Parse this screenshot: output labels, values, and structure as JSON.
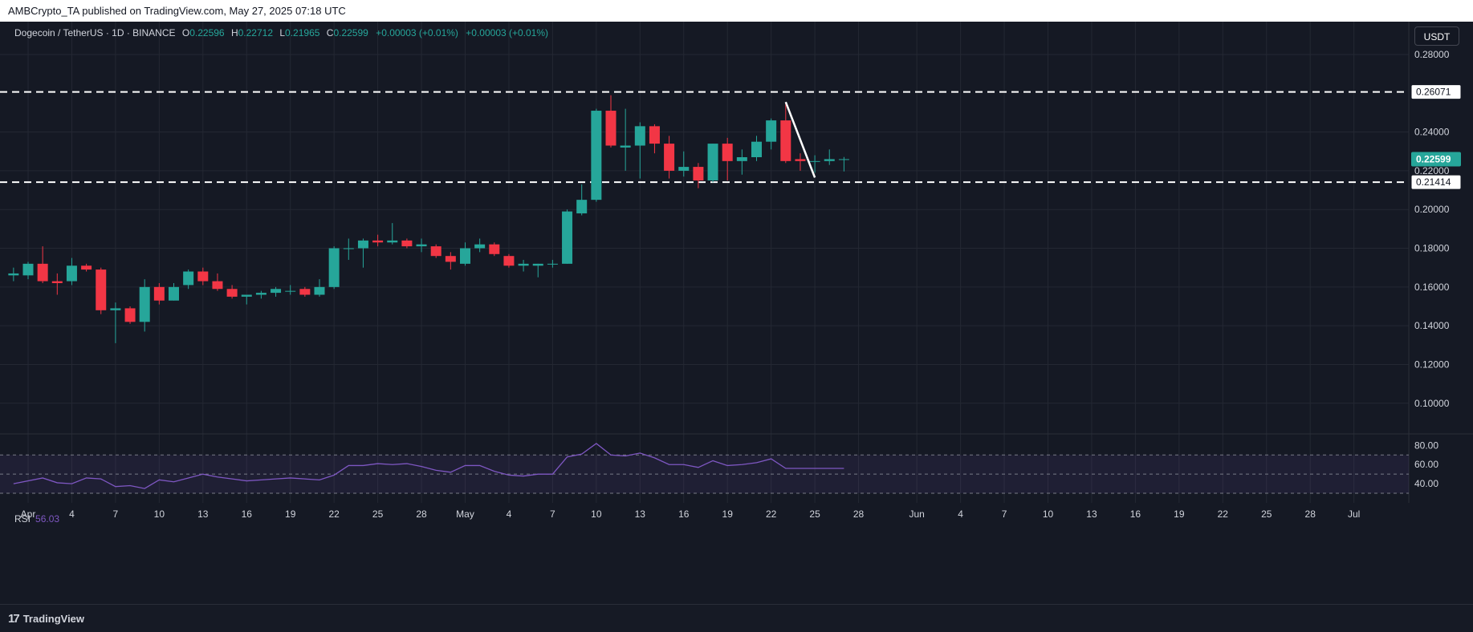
{
  "header": {
    "publish_line": "AMBCrypto_TA published on TradingView.com, May 27, 2025 07:18 UTC"
  },
  "legend": {
    "symbol": "Dogecoin / TetherUS · 1D · BINANCE",
    "o_label": "O",
    "o_value": "0.22596",
    "h_label": "H",
    "h_value": "0.22712",
    "l_label": "L",
    "l_value": "0.21965",
    "c_label": "C",
    "c_value": "0.22599",
    "change": "+0.00003 (+0.01%)",
    "change2": "+0.00003 (+0.01%)"
  },
  "currency_button": "USDT",
  "rsi_legend": {
    "label": "RSI",
    "value": "56.03"
  },
  "footer": {
    "brand": "TradingView"
  },
  "colors": {
    "up": "#26a69a",
    "down": "#f23645",
    "rsi": "#7e57c2",
    "grid": "#242833",
    "axis_text": "#d1d4dc",
    "background": "#151924"
  },
  "chart_data": {
    "type": "candlestick",
    "title": "Dogecoin / TetherUS · 1D · BINANCE",
    "ylim": [
      0.085,
      0.292
    ],
    "y_ticks": [
      "0.28000",
      "0.24000",
      "0.22000",
      "0.20000",
      "0.18000",
      "0.16000",
      "0.14000",
      "0.12000",
      "0.10000"
    ],
    "x_ticks": [
      "Apr",
      "4",
      "7",
      "10",
      "13",
      "16",
      "19",
      "22",
      "25",
      "28",
      "May",
      "4",
      "7",
      "10",
      "13",
      "16",
      "19",
      "22",
      "25",
      "28",
      "Jun",
      "4",
      "7",
      "10",
      "13",
      "16",
      "19",
      "22",
      "25",
      "28",
      "Jul"
    ],
    "x_tick_days": [
      0,
      3,
      6,
      9,
      12,
      15,
      18,
      21,
      24,
      27,
      30,
      33,
      36,
      39,
      42,
      45,
      48,
      51,
      54,
      57,
      61,
      64,
      67,
      70,
      73,
      76,
      79,
      82,
      85,
      88,
      91
    ],
    "start_date": "2025-03-31",
    "candles": [
      {
        "d": -1,
        "o": 0.166,
        "h": 0.17,
        "l": 0.163,
        "c": 0.167
      },
      {
        "d": 0,
        "o": 0.166,
        "h": 0.173,
        "l": 0.164,
        "c": 0.172
      },
      {
        "d": 1,
        "o": 0.172,
        "h": 0.181,
        "l": 0.162,
        "c": 0.163
      },
      {
        "d": 2,
        "o": 0.163,
        "h": 0.167,
        "l": 0.156,
        "c": 0.162
      },
      {
        "d": 3,
        "o": 0.163,
        "h": 0.175,
        "l": 0.161,
        "c": 0.171
      },
      {
        "d": 4,
        "o": 0.171,
        "h": 0.172,
        "l": 0.168,
        "c": 0.169
      },
      {
        "d": 5,
        "o": 0.169,
        "h": 0.17,
        "l": 0.146,
        "c": 0.148
      },
      {
        "d": 6,
        "o": 0.148,
        "h": 0.152,
        "l": 0.131,
        "c": 0.149
      },
      {
        "d": 7,
        "o": 0.149,
        "h": 0.15,
        "l": 0.141,
        "c": 0.142
      },
      {
        "d": 8,
        "o": 0.142,
        "h": 0.164,
        "l": 0.137,
        "c": 0.16
      },
      {
        "d": 9,
        "o": 0.16,
        "h": 0.162,
        "l": 0.151,
        "c": 0.153
      },
      {
        "d": 10,
        "o": 0.153,
        "h": 0.162,
        "l": 0.153,
        "c": 0.16
      },
      {
        "d": 11,
        "o": 0.161,
        "h": 0.169,
        "l": 0.159,
        "c": 0.168
      },
      {
        "d": 12,
        "o": 0.168,
        "h": 0.17,
        "l": 0.161,
        "c": 0.163
      },
      {
        "d": 13,
        "o": 0.163,
        "h": 0.167,
        "l": 0.158,
        "c": 0.159
      },
      {
        "d": 14,
        "o": 0.159,
        "h": 0.161,
        "l": 0.154,
        "c": 0.155
      },
      {
        "d": 15,
        "o": 0.155,
        "h": 0.156,
        "l": 0.151,
        "c": 0.156
      },
      {
        "d": 16,
        "o": 0.156,
        "h": 0.158,
        "l": 0.154,
        "c": 0.157
      },
      {
        "d": 17,
        "o": 0.157,
        "h": 0.16,
        "l": 0.155,
        "c": 0.159
      },
      {
        "d": 18,
        "o": 0.158,
        "h": 0.161,
        "l": 0.156,
        "c": 0.158
      },
      {
        "d": 19,
        "o": 0.159,
        "h": 0.16,
        "l": 0.155,
        "c": 0.156
      },
      {
        "d": 20,
        "o": 0.156,
        "h": 0.164,
        "l": 0.155,
        "c": 0.16
      },
      {
        "d": 21,
        "o": 0.16,
        "h": 0.181,
        "l": 0.159,
        "c": 0.18
      },
      {
        "d": 22,
        "o": 0.18,
        "h": 0.185,
        "l": 0.174,
        "c": 0.18
      },
      {
        "d": 23,
        "o": 0.18,
        "h": 0.185,
        "l": 0.17,
        "c": 0.184
      },
      {
        "d": 24,
        "o": 0.184,
        "h": 0.187,
        "l": 0.181,
        "c": 0.183
      },
      {
        "d": 25,
        "o": 0.183,
        "h": 0.193,
        "l": 0.182,
        "c": 0.184
      },
      {
        "d": 26,
        "o": 0.184,
        "h": 0.185,
        "l": 0.18,
        "c": 0.181
      },
      {
        "d": 27,
        "o": 0.181,
        "h": 0.185,
        "l": 0.178,
        "c": 0.182
      },
      {
        "d": 28,
        "o": 0.181,
        "h": 0.182,
        "l": 0.175,
        "c": 0.176
      },
      {
        "d": 29,
        "o": 0.176,
        "h": 0.178,
        "l": 0.169,
        "c": 0.173
      },
      {
        "d": 30,
        "o": 0.172,
        "h": 0.183,
        "l": 0.171,
        "c": 0.18
      },
      {
        "d": 31,
        "o": 0.18,
        "h": 0.185,
        "l": 0.178,
        "c": 0.182
      },
      {
        "d": 32,
        "o": 0.182,
        "h": 0.183,
        "l": 0.176,
        "c": 0.177
      },
      {
        "d": 33,
        "o": 0.176,
        "h": 0.177,
        "l": 0.17,
        "c": 0.171
      },
      {
        "d": 34,
        "o": 0.171,
        "h": 0.174,
        "l": 0.168,
        "c": 0.172
      },
      {
        "d": 35,
        "o": 0.171,
        "h": 0.172,
        "l": 0.165,
        "c": 0.172
      },
      {
        "d": 36,
        "o": 0.172,
        "h": 0.174,
        "l": 0.17,
        "c": 0.172
      },
      {
        "d": 37,
        "o": 0.172,
        "h": 0.2,
        "l": 0.172,
        "c": 0.199
      },
      {
        "d": 38,
        "o": 0.198,
        "h": 0.213,
        "l": 0.197,
        "c": 0.205
      },
      {
        "d": 39,
        "o": 0.205,
        "h": 0.252,
        "l": 0.204,
        "c": 0.251
      },
      {
        "d": 40,
        "o": 0.251,
        "h": 0.259,
        "l": 0.232,
        "c": 0.233
      },
      {
        "d": 41,
        "o": 0.232,
        "h": 0.252,
        "l": 0.22,
        "c": 0.233
      },
      {
        "d": 42,
        "o": 0.233,
        "h": 0.245,
        "l": 0.216,
        "c": 0.243
      },
      {
        "d": 43,
        "o": 0.243,
        "h": 0.244,
        "l": 0.229,
        "c": 0.234
      },
      {
        "d": 44,
        "o": 0.234,
        "h": 0.238,
        "l": 0.216,
        "c": 0.22
      },
      {
        "d": 45,
        "o": 0.22,
        "h": 0.23,
        "l": 0.217,
        "c": 0.222
      },
      {
        "d": 46,
        "o": 0.222,
        "h": 0.224,
        "l": 0.211,
        "c": 0.215
      },
      {
        "d": 47,
        "o": 0.215,
        "h": 0.234,
        "l": 0.214,
        "c": 0.234
      },
      {
        "d": 48,
        "o": 0.234,
        "h": 0.237,
        "l": 0.215,
        "c": 0.225
      },
      {
        "d": 49,
        "o": 0.225,
        "h": 0.231,
        "l": 0.218,
        "c": 0.227
      },
      {
        "d": 50,
        "o": 0.227,
        "h": 0.238,
        "l": 0.225,
        "c": 0.235
      },
      {
        "d": 51,
        "o": 0.235,
        "h": 0.247,
        "l": 0.231,
        "c": 0.246
      },
      {
        "d": 52,
        "o": 0.246,
        "h": 0.255,
        "l": 0.224,
        "c": 0.225
      },
      {
        "d": 53,
        "o": 0.226,
        "h": 0.229,
        "l": 0.22,
        "c": 0.225
      },
      {
        "d": 54,
        "o": 0.225,
        "h": 0.228,
        "l": 0.219,
        "c": 0.225
      },
      {
        "d": 55,
        "o": 0.225,
        "h": 0.231,
        "l": 0.223,
        "c": 0.226
      },
      {
        "d": 56,
        "o": 0.22596,
        "h": 0.22712,
        "l": 0.21965,
        "c": 0.22599
      }
    ],
    "horizontal_levels": [
      {
        "value": 0.26071,
        "label": "0.26071"
      },
      {
        "value": 0.21414,
        "label": "0.21414"
      }
    ],
    "current_price": {
      "value": 0.22599,
      "label": "0.22599"
    },
    "trendline": {
      "from": {
        "d": 52,
        "price": 0.2555
      },
      "to": {
        "d": 54,
        "price": 0.2165
      }
    },
    "rsi": {
      "ylim": [
        20,
        87
      ],
      "y_ticks": [
        "80.00",
        "60.00",
        "40.00"
      ],
      "band": [
        30,
        70
      ],
      "mid": 50,
      "values": [
        {
          "d": -1,
          "v": 40
        },
        {
          "d": 1,
          "v": 46
        },
        {
          "d": 2,
          "v": 41
        },
        {
          "d": 3,
          "v": 40
        },
        {
          "d": 4,
          "v": 46
        },
        {
          "d": 5,
          "v": 45
        },
        {
          "d": 6,
          "v": 37
        },
        {
          "d": 7,
          "v": 38
        },
        {
          "d": 8,
          "v": 35
        },
        {
          "d": 9,
          "v": 44
        },
        {
          "d": 10,
          "v": 42
        },
        {
          "d": 11,
          "v": 46
        },
        {
          "d": 12,
          "v": 50
        },
        {
          "d": 13,
          "v": 47
        },
        {
          "d": 14,
          "v": 45
        },
        {
          "d": 15,
          "v": 43
        },
        {
          "d": 16,
          "v": 44
        },
        {
          "d": 17,
          "v": 45
        },
        {
          "d": 18,
          "v": 46
        },
        {
          "d": 19,
          "v": 45
        },
        {
          "d": 20,
          "v": 44
        },
        {
          "d": 21,
          "v": 49
        },
        {
          "d": 22,
          "v": 59
        },
        {
          "d": 23,
          "v": 59
        },
        {
          "d": 24,
          "v": 61
        },
        {
          "d": 25,
          "v": 60
        },
        {
          "d": 26,
          "v": 61
        },
        {
          "d": 27,
          "v": 58
        },
        {
          "d": 28,
          "v": 54
        },
        {
          "d": 29,
          "v": 52
        },
        {
          "d": 30,
          "v": 59
        },
        {
          "d": 31,
          "v": 59
        },
        {
          "d": 32,
          "v": 53
        },
        {
          "d": 33,
          "v": 49
        },
        {
          "d": 34,
          "v": 48
        },
        {
          "d": 35,
          "v": 50
        },
        {
          "d": 36,
          "v": 50
        },
        {
          "d": 37,
          "v": 68
        },
        {
          "d": 38,
          "v": 71
        },
        {
          "d": 39,
          "v": 82
        },
        {
          "d": 40,
          "v": 70
        },
        {
          "d": 41,
          "v": 69
        },
        {
          "d": 42,
          "v": 72
        },
        {
          "d": 43,
          "v": 67
        },
        {
          "d": 44,
          "v": 60
        },
        {
          "d": 45,
          "v": 60
        },
        {
          "d": 46,
          "v": 57
        },
        {
          "d": 47,
          "v": 64
        },
        {
          "d": 48,
          "v": 59
        },
        {
          "d": 49,
          "v": 60
        },
        {
          "d": 50,
          "v": 62
        },
        {
          "d": 51,
          "v": 66
        },
        {
          "d": 52,
          "v": 56
        },
        {
          "d": 53,
          "v": 56
        },
        {
          "d": 54,
          "v": 56
        },
        {
          "d": 55,
          "v": 56
        },
        {
          "d": 56,
          "v": 56.03
        }
      ]
    }
  }
}
